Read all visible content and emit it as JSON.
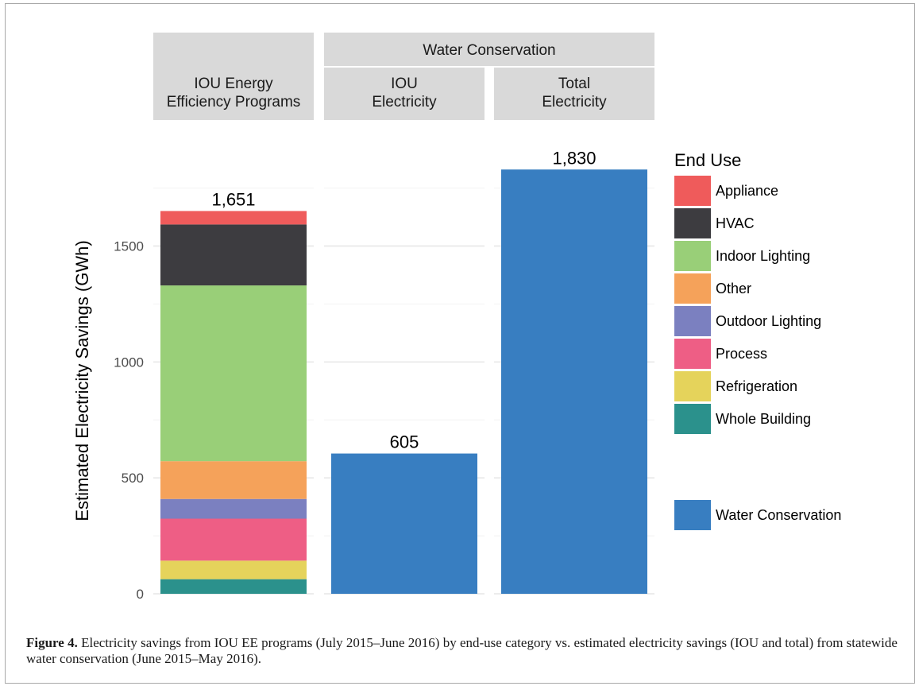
{
  "chart_data": {
    "type": "bar",
    "ylabel": "Estimated Electricity Savings (GWh)",
    "yticks": [
      0,
      500,
      1000,
      1500
    ],
    "ylim": [
      0,
      1920
    ],
    "grid": true,
    "legend_placement": "right",
    "facet_group_header": "Water Conservation",
    "facets": [
      {
        "label": "IOU Energy Efficiency Programs",
        "label_lines": [
          "IOU Energy",
          "Efficiency Programs"
        ],
        "total_label": "1,651",
        "stack": [
          {
            "series": "Whole Building",
            "value": 63
          },
          {
            "series": "Refrigeration",
            "value": 80
          },
          {
            "series": "Process",
            "value": 181
          },
          {
            "series": "Outdoor Lighting",
            "value": 85
          },
          {
            "series": "Other",
            "value": 163
          },
          {
            "series": "Indoor Lighting",
            "value": 758
          },
          {
            "series": "HVAC",
            "value": 263
          },
          {
            "series": "Appliance",
            "value": 58
          }
        ]
      },
      {
        "label": "IOU Electricity",
        "label_lines": [
          "IOU",
          "Electricity"
        ],
        "total_label": "605",
        "stack": [
          {
            "series": "Water Conservation",
            "value": 605
          }
        ]
      },
      {
        "label": "Total Electricity",
        "label_lines": [
          "Total",
          "Electricity"
        ],
        "total_label": "1,830",
        "stack": [
          {
            "series": "Water Conservation",
            "value": 1830
          }
        ]
      }
    ],
    "legend": {
      "title": "End Use",
      "items": [
        {
          "name": "Appliance",
          "color": "#ef5b5b"
        },
        {
          "name": "HVAC",
          "color": "#3d3c40"
        },
        {
          "name": "Indoor Lighting",
          "color": "#99cf78"
        },
        {
          "name": "Other",
          "color": "#f5a25a"
        },
        {
          "name": "Outdoor Lighting",
          "color": "#7b80c0"
        },
        {
          "name": "Process",
          "color": "#ee5e85"
        },
        {
          "name": "Refrigeration",
          "color": "#e5d35b"
        },
        {
          "name": "Whole Building",
          "color": "#2b918c"
        }
      ],
      "extra_item": {
        "name": "Water Conservation",
        "color": "#387ec1"
      }
    }
  },
  "caption": {
    "label": "Figure 4.",
    "text": " Electricity savings from IOU EE programs (July 2015–June 2016) by end-use category vs. estimated electricity savings (IOU and total) from statewide water conservation (June 2015–May 2016)."
  }
}
